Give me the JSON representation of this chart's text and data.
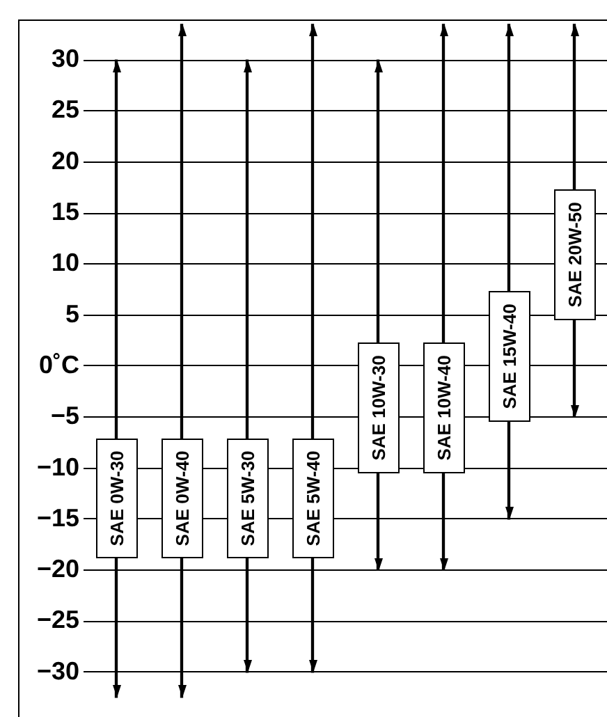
{
  "chart_data": {
    "type": "bar",
    "categories": [
      "SAE 0W-30",
      "SAE 0W-40",
      "SAE 5W-30",
      "SAE 5W-40",
      "SAE 10W-30",
      "SAE 10W-40",
      "SAE 15W-40",
      "SAE 20W-50"
    ],
    "base": [
      -32.5,
      -32.5,
      -30,
      -30,
      -20,
      -20,
      -15,
      -5
    ],
    "values": [
      62.5,
      66,
      60,
      63.5,
      50,
      53.5,
      48.5,
      38.5
    ],
    "color": "#000000",
    "ylim": [
      -32.5,
      34
    ],
    "yticks": [
      {
        "value": -30,
        "label": "−30"
      },
      {
        "value": -25,
        "label": "−25"
      },
      {
        "value": -20,
        "label": "−20"
      },
      {
        "value": -15,
        "label": "−15"
      },
      {
        "value": -10,
        "label": "−10"
      },
      {
        "value": -5,
        "label": "−5"
      },
      {
        "value": 0,
        "label": "0˚C"
      },
      5,
      10,
      15,
      20,
      25,
      30
    ],
    "grid": "y",
    "legend": false
  }
}
